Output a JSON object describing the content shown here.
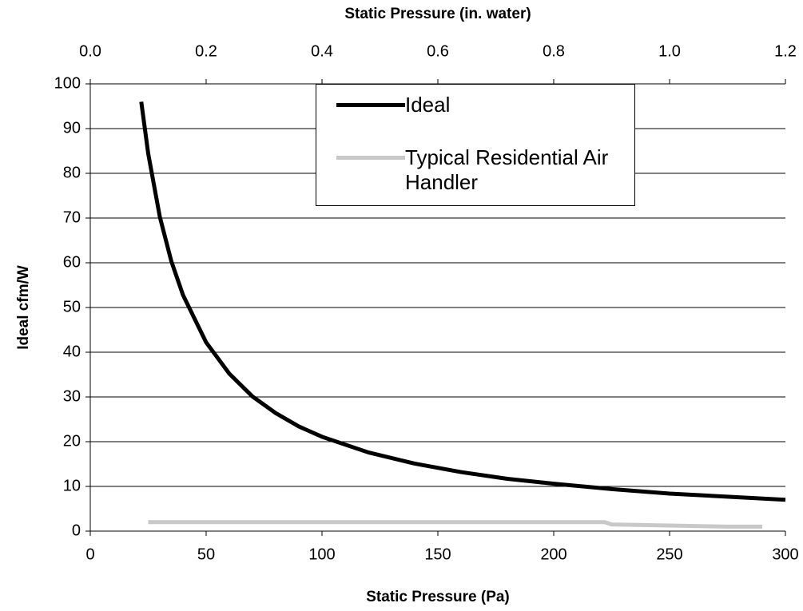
{
  "chart_data": {
    "type": "line",
    "xlabel": "Static Pressure (Pa)",
    "x2label": "Static Pressure (in. water)",
    "ylabel": "Ideal cfm/W",
    "xlim": [
      0,
      300
    ],
    "xticks": [
      0,
      50,
      100,
      150,
      200,
      250,
      300
    ],
    "x2lim": [
      0,
      1.2
    ],
    "x2ticks": [
      {
        "value": 0,
        "label": "0.0"
      },
      0.2,
      0.4,
      0.6,
      0.8,
      {
        "value": 1,
        "label": "1.0"
      },
      1.2
    ],
    "ylim": [
      0,
      100
    ],
    "yticks": [
      0,
      10,
      20,
      30,
      40,
      50,
      60,
      70,
      80,
      90,
      100
    ],
    "grid": true,
    "legend": "upper center",
    "series": [
      {
        "name": "Ideal",
        "color": "#000000",
        "x": [
          22,
          25,
          30,
          35,
          40,
          50,
          60,
          70,
          80,
          90,
          100,
          120,
          140,
          160,
          180,
          200,
          225,
          250,
          275,
          300
        ],
        "values": [
          96,
          84.4,
          70.3,
          60.3,
          52.8,
          42.2,
          35.2,
          30.1,
          26.4,
          23.4,
          21.1,
          17.6,
          15.1,
          13.2,
          11.7,
          10.6,
          9.4,
          8.4,
          7.7,
          7.0
        ]
      },
      {
        "name": "Typical Residential Air Handler",
        "color": "#c8c8c8",
        "x": [
          25,
          222,
          225,
          275,
          290
        ],
        "values": [
          2,
          2,
          1.5,
          1,
          1
        ]
      }
    ]
  }
}
